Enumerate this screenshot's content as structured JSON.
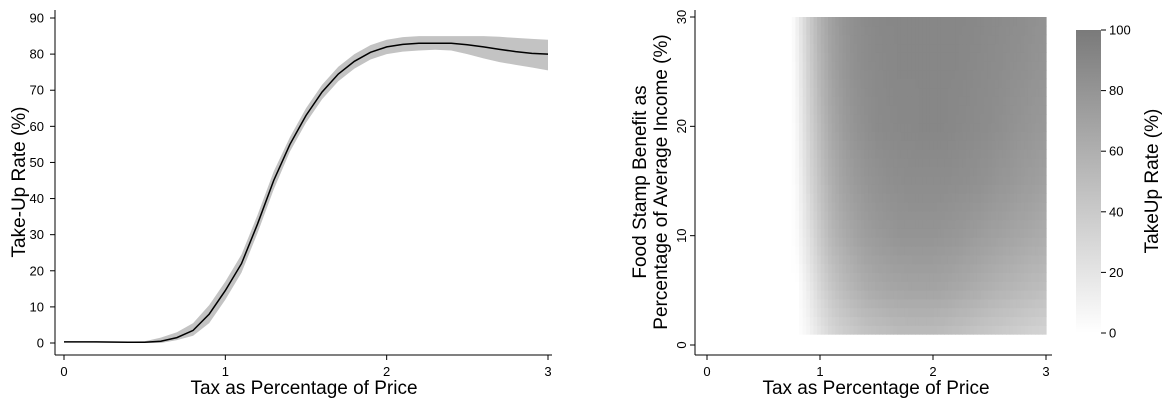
{
  "chart_data": [
    {
      "type": "line",
      "xlabel": "Tax as Percentage of Price",
      "ylabel": "Take-Up Rate (%)",
      "xlim": [
        0,
        3
      ],
      "ylim": [
        0,
        90
      ],
      "x_ticks": [
        "0",
        "1",
        "2",
        "3"
      ],
      "y_ticks": [
        "0",
        "10",
        "20",
        "30",
        "40",
        "50",
        "60",
        "70",
        "80",
        "90"
      ],
      "grid": false,
      "series": [
        {
          "x": [
            0,
            0.2,
            0.4,
            0.5,
            0.6,
            0.7,
            0.8,
            0.9,
            1.0,
            1.1,
            1.2,
            1.3,
            1.4,
            1.5,
            1.6,
            1.7,
            1.8,
            1.9,
            2.0,
            2.1,
            2.2,
            2.3,
            2.4,
            2.5,
            2.6,
            2.7,
            2.8,
            2.9,
            3.0
          ],
          "y": [
            0.3,
            0.3,
            0.2,
            0.2,
            0.5,
            1.5,
            3.5,
            8.0,
            14.5,
            22.0,
            33.0,
            45.0,
            55.0,
            63.0,
            69.5,
            74.5,
            78.0,
            80.5,
            82.0,
            82.7,
            83.0,
            83.0,
            83.0,
            82.6,
            82.0,
            81.3,
            80.7,
            80.2,
            80.0
          ]
        }
      ],
      "confidence_band": {
        "lower": [
          0.2,
          0.1,
          0.0,
          0.0,
          0.0,
          0.8,
          2.0,
          5.5,
          12.0,
          19.5,
          30.5,
          42.5,
          53.0,
          61.0,
          67.5,
          72.5,
          76.0,
          78.5,
          80.0,
          80.7,
          81.0,
          81.2,
          81.0,
          80.0,
          78.8,
          77.8,
          77.0,
          76.3,
          75.5
        ],
        "upper": [
          0.4,
          0.4,
          0.4,
          0.5,
          1.5,
          3.0,
          5.5,
          10.5,
          17.0,
          24.5,
          35.5,
          47.5,
          57.0,
          65.0,
          71.5,
          76.5,
          80.0,
          82.5,
          84.0,
          84.7,
          85.0,
          85.0,
          85.0,
          85.0,
          85.0,
          84.8,
          84.5,
          84.2,
          84.0
        ]
      }
    },
    {
      "type": "heatmap",
      "xlabel": "Tax as Percentage of Price",
      "ylabel_lines": [
        "Food Stamp Benefit as",
        "Percentage of Average Income (%)"
      ],
      "xlim": [
        0,
        3
      ],
      "ylim": [
        0,
        30
      ],
      "x_ticks": [
        "0",
        "1",
        "2",
        "3"
      ],
      "y_ticks": [
        "0",
        "10",
        "20",
        "30"
      ],
      "colorbar_label": "TakeUp Rate (%)",
      "colorbar_ticks": [
        "0",
        "20",
        "40",
        "60",
        "80",
        "100"
      ],
      "colorbar_range": [
        0,
        100
      ],
      "colormap": [
        "#ffffff",
        "#7a7a7a"
      ],
      "x": [
        0.75,
        0.8,
        0.9,
        1.0,
        1.1,
        1.2,
        1.3,
        1.4,
        1.5,
        1.6,
        1.7,
        1.8,
        1.9,
        2.0,
        2.1,
        2.2,
        2.3,
        2.4,
        2.5,
        2.6,
        2.7,
        2.8,
        2.9,
        3.0
      ],
      "y": [
        1,
        5,
        10,
        15,
        20,
        25,
        30
      ],
      "z": [
        [
          0,
          0,
          8,
          20,
          30,
          36,
          40,
          44,
          46,
          48,
          50,
          50,
          50,
          50,
          49,
          47,
          45,
          43,
          41,
          39,
          37,
          35,
          33,
          32
        ],
        [
          0,
          0,
          14,
          30,
          42,
          50,
          56,
          61,
          64,
          66,
          67,
          68,
          68,
          68,
          67,
          65,
          63,
          61,
          58,
          56,
          54,
          52,
          50,
          48
        ],
        [
          0,
          4,
          22,
          40,
          54,
          62,
          68,
          73,
          76,
          78,
          80,
          80,
          80,
          80,
          79,
          78,
          76,
          74,
          72,
          70,
          68,
          66,
          64,
          62
        ],
        [
          0,
          6,
          28,
          46,
          60,
          69,
          75,
          79,
          82,
          84,
          85,
          86,
          86,
          86,
          86,
          85,
          84,
          83,
          81,
          79,
          77,
          75,
          73,
          71
        ],
        [
          0,
          8,
          32,
          51,
          65,
          74,
          80,
          84,
          87,
          88,
          89,
          89,
          90,
          90,
          90,
          89,
          88,
          87,
          86,
          84,
          82,
          80,
          78,
          77
        ],
        [
          0,
          10,
          35,
          55,
          69,
          77,
          83,
          86,
          88,
          89,
          90,
          90,
          90,
          90,
          90,
          90,
          89,
          88,
          87,
          86,
          84,
          83,
          81,
          80
        ],
        [
          0,
          12,
          38,
          58,
          71,
          79,
          84,
          87,
          89,
          90,
          90,
          90,
          90,
          90,
          90,
          90,
          90,
          89,
          88,
          87,
          86,
          85,
          83,
          82
        ]
      ]
    }
  ]
}
